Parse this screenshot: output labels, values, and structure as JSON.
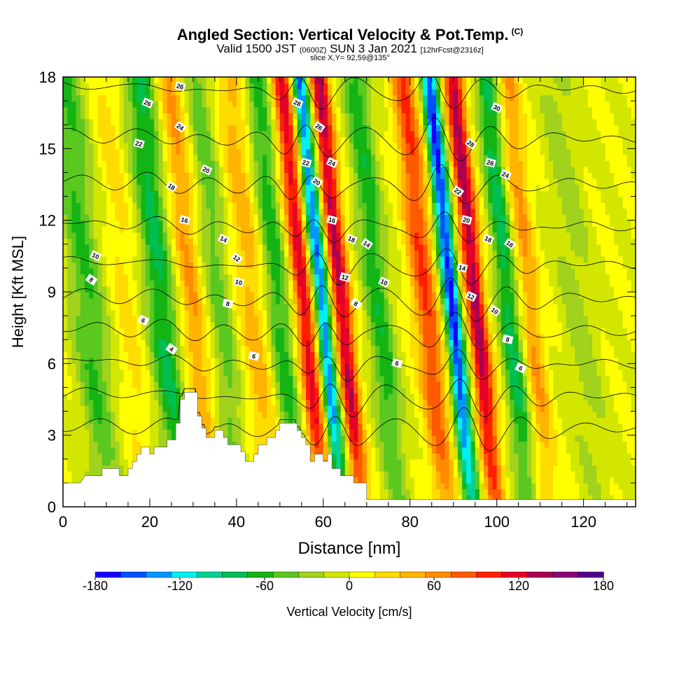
{
  "title": {
    "main": "Angled Section: Vertical Velocity & Pot.Temp.",
    "main_suffix": "(C)",
    "valid_prefix": "Valid 1500 JST",
    "valid_utc": "(0600Z)",
    "valid_date": "SUN 3 Jan 2021",
    "forecast": "[12hrFcst@2316z]",
    "slice": "slice X,Y= 92,59@135°"
  },
  "chart_data": {
    "type": "heatmap",
    "xlabel": "Distance [nm]",
    "ylabel": "Height [Kft MSL]",
    "xlim": [
      0,
      132
    ],
    "ylim": [
      0,
      18
    ],
    "x_ticks": [
      0,
      20,
      40,
      60,
      80,
      100,
      120
    ],
    "y_ticks": [
      0,
      3,
      6,
      9,
      12,
      15,
      18
    ],
    "colorbar": {
      "label": "Vertical Velocity [cm/s]",
      "range": [
        -180,
        180
      ],
      "tick_values": [
        -180,
        -120,
        -60,
        0,
        60,
        120,
        180
      ],
      "tick_labels": [
        "-180",
        "-120",
        "-60",
        "0",
        "60",
        "120",
        "180"
      ],
      "colors": [
        "#1400ff",
        "#0050ff",
        "#0096ff",
        "#00f0f0",
        "#00d296",
        "#00be50",
        "#14b414",
        "#5ac81e",
        "#a0d21e",
        "#d2e600",
        "#ffff00",
        "#ffdc00",
        "#ffb400",
        "#ff8c00",
        "#ff5a00",
        "#ff1e00",
        "#e60028",
        "#aa0050",
        "#8c0078",
        "#50008c"
      ]
    },
    "velocity_bands": [
      {
        "x": 7,
        "w": 4,
        "v": -55
      },
      {
        "x": 16,
        "w": 3,
        "v": 25
      },
      {
        "x": 24,
        "w": 3.5,
        "v": -75
      },
      {
        "x": 31,
        "w": 3,
        "v": 55
      },
      {
        "x": 37.5,
        "w": 3,
        "v": -45
      },
      {
        "x": 45,
        "w": 3.5,
        "v": 45
      },
      {
        "x": 51,
        "w": 3,
        "v": -65
      },
      {
        "x": 57,
        "w": 2.5,
        "v": 120
      },
      {
        "x": 61,
        "w": 2,
        "v": -150
      },
      {
        "x": 65.5,
        "w": 2.3,
        "v": 130
      },
      {
        "x": 74,
        "w": 3,
        "v": -65
      },
      {
        "x": 85,
        "w": 3,
        "v": 90
      },
      {
        "x": 91,
        "w": 2,
        "v": -165
      },
      {
        "x": 96.5,
        "w": 2.3,
        "v": 135
      },
      {
        "x": 104,
        "w": 2.5,
        "v": -80
      },
      {
        "x": 109,
        "w": 2.5,
        "v": 55
      },
      {
        "x": 120,
        "w": 4,
        "v": -25
      }
    ],
    "terrain": [
      [
        0,
        1
      ],
      [
        4,
        1
      ],
      [
        5,
        1.3
      ],
      [
        9,
        1.3
      ],
      [
        9,
        1.6
      ],
      [
        13,
        1.6
      ],
      [
        13,
        1.3
      ],
      [
        15,
        1.3
      ],
      [
        15,
        1.6
      ],
      [
        16,
        1.6
      ],
      [
        16,
        1.9
      ],
      [
        17,
        1.9
      ],
      [
        17,
        2.2
      ],
      [
        18,
        2.2
      ],
      [
        18,
        2.5
      ],
      [
        20,
        2.5
      ],
      [
        20,
        2.2
      ],
      [
        21,
        2.2
      ],
      [
        21,
        2.5
      ],
      [
        24,
        2.5
      ],
      [
        24,
        2.8
      ],
      [
        26,
        2.8
      ],
      [
        26,
        3.5
      ],
      [
        27,
        3.5
      ],
      [
        27,
        4.5
      ],
      [
        28,
        4.5
      ],
      [
        28,
        4.8
      ],
      [
        31,
        4.8
      ],
      [
        31,
        3.8
      ],
      [
        32,
        3.8
      ],
      [
        32,
        3.3
      ],
      [
        33,
        3.3
      ],
      [
        33,
        2.9
      ],
      [
        35,
        2.9
      ],
      [
        35,
        3.2
      ],
      [
        37,
        3.2
      ],
      [
        37,
        2.9
      ],
      [
        38,
        2.9
      ],
      [
        38,
        2.6
      ],
      [
        41,
        2.6
      ],
      [
        41,
        2.3
      ],
      [
        42,
        2.3
      ],
      [
        42,
        1.9
      ],
      [
        44,
        1.9
      ],
      [
        44,
        2.2
      ],
      [
        45,
        2.2
      ],
      [
        45,
        2.6
      ],
      [
        47,
        2.6
      ],
      [
        47,
        2.9
      ],
      [
        49,
        2.9
      ],
      [
        49,
        3.2
      ],
      [
        50,
        3.2
      ],
      [
        50,
        3.5
      ],
      [
        54,
        3.5
      ],
      [
        54,
        3.2
      ],
      [
        55,
        3.2
      ],
      [
        55,
        2.9
      ],
      [
        56,
        2.9
      ],
      [
        56,
        2.6
      ],
      [
        57,
        2.6
      ],
      [
        57,
        1.9
      ],
      [
        58,
        1.9
      ],
      [
        58,
        2.2
      ],
      [
        60,
        2.2
      ],
      [
        60,
        1.9
      ],
      [
        61,
        1.9
      ],
      [
        61,
        2.2
      ],
      [
        62,
        2.2
      ],
      [
        62,
        1.6
      ],
      [
        64,
        1.6
      ],
      [
        64,
        1.3
      ],
      [
        67,
        1.3
      ],
      [
        67,
        1
      ],
      [
        70,
        1
      ],
      [
        70,
        0.3
      ],
      [
        132,
        0.3
      ]
    ],
    "isentropes": [
      4,
      6,
      8,
      10,
      12,
      14,
      16,
      18,
      20,
      22,
      24,
      26,
      28,
      30
    ],
    "contour_labels": [
      {
        "text": "26",
        "x": 27,
        "y": 17.6
      },
      {
        "text": "26",
        "x": 19.5,
        "y": 16.9
      },
      {
        "text": "24",
        "x": 27,
        "y": 15.9
      },
      {
        "text": "22",
        "x": 17.5,
        "y": 15.2
      },
      {
        "text": "20",
        "x": 33,
        "y": 14.1
      },
      {
        "text": "18",
        "x": 25,
        "y": 13.4
      },
      {
        "text": "16",
        "x": 28,
        "y": 12.0
      },
      {
        "text": "14",
        "x": 37,
        "y": 11.2
      },
      {
        "text": "12",
        "x": 40,
        "y": 10.4
      },
      {
        "text": "10",
        "x": 40.5,
        "y": 9.4
      },
      {
        "text": "10",
        "x": 7.5,
        "y": 10.5
      },
      {
        "text": "8",
        "x": 6.5,
        "y": 9.5
      },
      {
        "text": "8",
        "x": 38,
        "y": 8.5
      },
      {
        "text": "6",
        "x": 18.5,
        "y": 7.8
      },
      {
        "text": "4",
        "x": 25,
        "y": 6.6
      },
      {
        "text": "6",
        "x": 44,
        "y": 6.3
      },
      {
        "text": "28",
        "x": 54,
        "y": 16.9
      },
      {
        "text": "26",
        "x": 59,
        "y": 15.9
      },
      {
        "text": "22",
        "x": 56,
        "y": 14.4
      },
      {
        "text": "24",
        "x": 62,
        "y": 14.4
      },
      {
        "text": "20",
        "x": 58.5,
        "y": 13.6
      },
      {
        "text": "16",
        "x": 62,
        "y": 12.0
      },
      {
        "text": "18",
        "x": 66.5,
        "y": 11.2
      },
      {
        "text": "14",
        "x": 70,
        "y": 11.0
      },
      {
        "text": "12",
        "x": 65,
        "y": 9.6
      },
      {
        "text": "10",
        "x": 74,
        "y": 9.4
      },
      {
        "text": "8",
        "x": 67.5,
        "y": 8.5
      },
      {
        "text": "6",
        "x": 77,
        "y": 6.0
      },
      {
        "text": "30",
        "x": 100,
        "y": 16.7
      },
      {
        "text": "28",
        "x": 94,
        "y": 15.2
      },
      {
        "text": "26",
        "x": 98.5,
        "y": 14.4
      },
      {
        "text": "24",
        "x": 102,
        "y": 13.9
      },
      {
        "text": "22",
        "x": 91,
        "y": 13.2
      },
      {
        "text": "20",
        "x": 93,
        "y": 12.0
      },
      {
        "text": "18",
        "x": 98,
        "y": 11.2
      },
      {
        "text": "16",
        "x": 103,
        "y": 11.0
      },
      {
        "text": "14",
        "x": 92,
        "y": 10.0
      },
      {
        "text": "12",
        "x": 94,
        "y": 8.8
      },
      {
        "text": "10",
        "x": 99.5,
        "y": 8.2
      },
      {
        "text": "8",
        "x": 102.5,
        "y": 7.0
      },
      {
        "text": "6",
        "x": 105.5,
        "y": 5.8
      }
    ]
  }
}
